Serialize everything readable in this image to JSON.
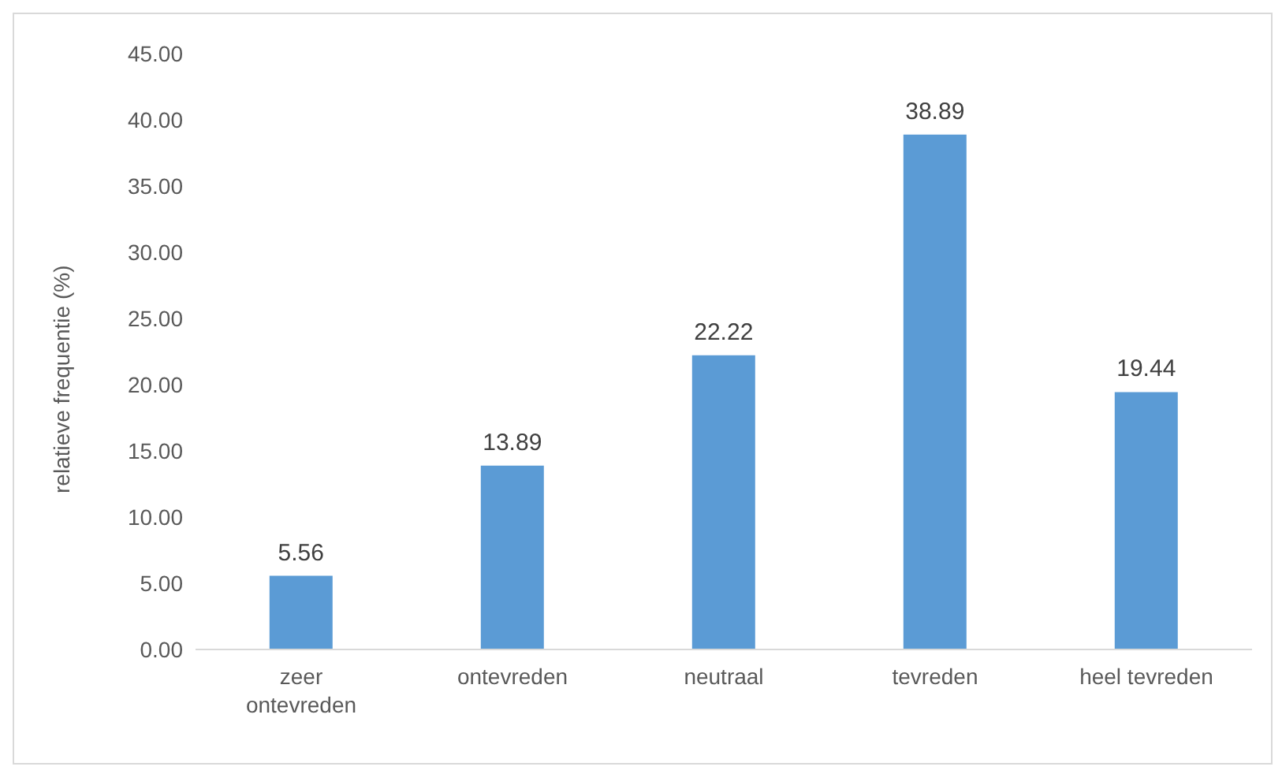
{
  "chart_data": {
    "type": "bar",
    "ylabel": "relatieve frequentie (%)",
    "categories": [
      "zeer ontevreden",
      "ontevreden",
      "neutraal",
      "tevreden",
      "heel tevreden"
    ],
    "values": [
      5.56,
      13.89,
      22.22,
      38.89,
      19.44
    ],
    "color": "#5b9bd5",
    "ylim": [
      0,
      45
    ],
    "yticks": [
      {
        "value": 0,
        "label": "0.00"
      },
      {
        "value": 5,
        "label": "5.00"
      },
      {
        "value": 10,
        "label": "10.00"
      },
      {
        "value": 15,
        "label": "15.00"
      },
      {
        "value": 20,
        "label": "20.00"
      },
      {
        "value": 25,
        "label": "25.00"
      },
      {
        "value": 30,
        "label": "30.00"
      },
      {
        "value": 35,
        "label": "35.00"
      },
      {
        "value": 40,
        "label": "40.00"
      },
      {
        "value": 45,
        "label": "45.00"
      }
    ],
    "data_labels": true,
    "grid": false,
    "legend": false
  }
}
